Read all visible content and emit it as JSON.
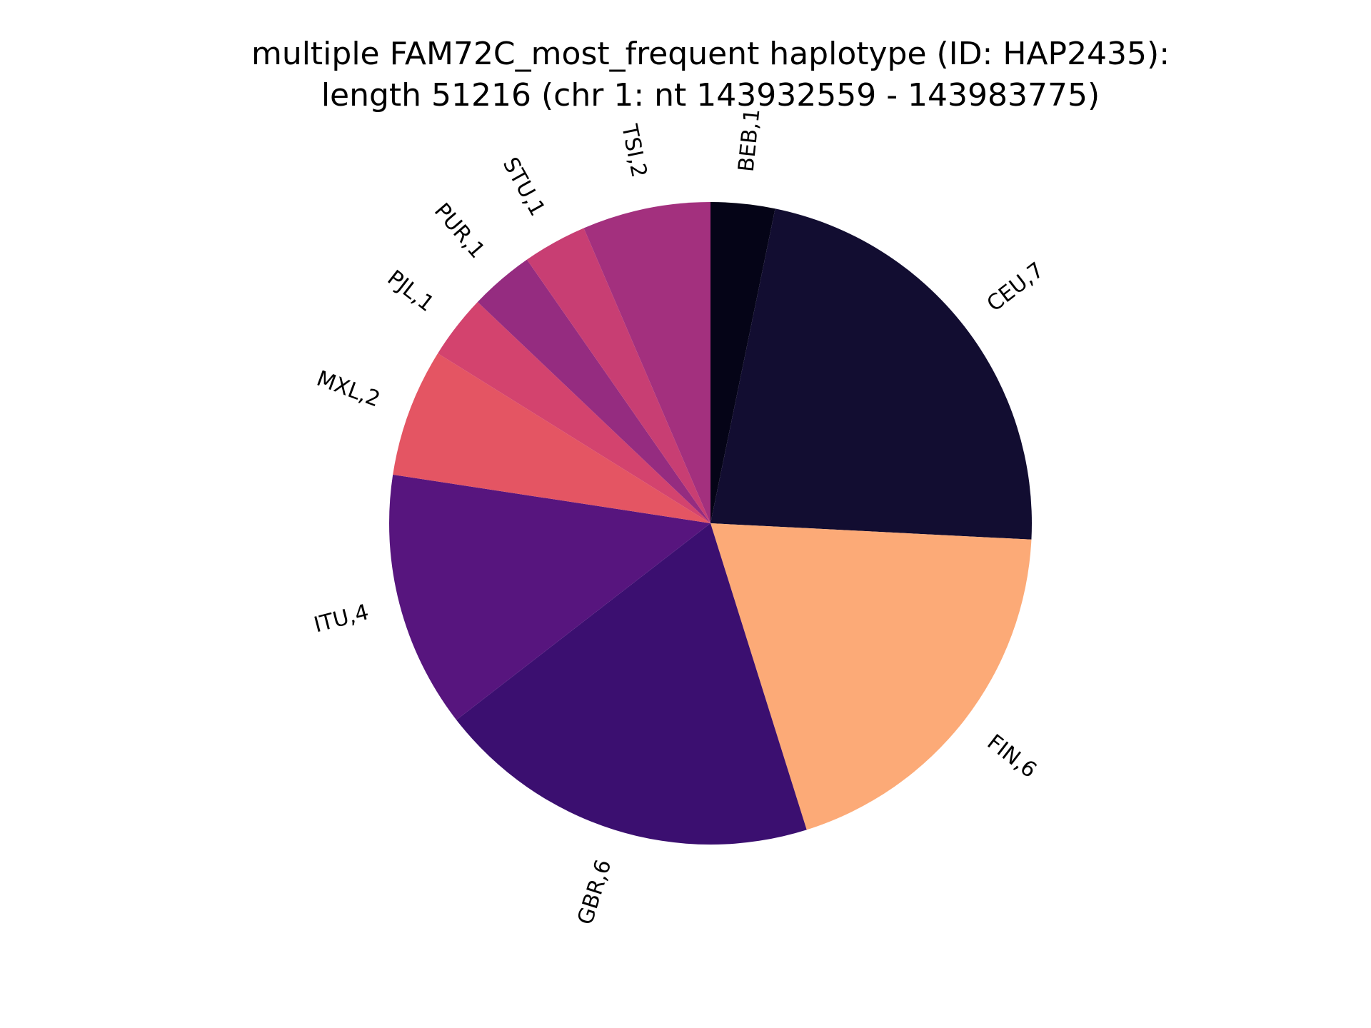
{
  "chart_data": {
    "type": "pie",
    "title_lines": [
      "multiple FAM72C_most_frequent haplotype (ID: HAP2435):",
      "length 51216 (chr 1: nt 143932559 - 143983775)"
    ],
    "start_angle_deg": 90,
    "direction": "clockwise",
    "slices": [
      {
        "label": "BEB,1",
        "category": "BEB",
        "value": 1,
        "color": "#050417"
      },
      {
        "label": "CEU,7",
        "category": "CEU",
        "value": 7,
        "color": "#120d31"
      },
      {
        "label": "FIN,6",
        "category": "FIN",
        "value": 6,
        "color": "#fcaa77"
      },
      {
        "label": "GBR,6",
        "category": "GBR",
        "value": 6,
        "color": "#3b0f70"
      },
      {
        "label": "ITU,4",
        "category": "ITU",
        "value": 4,
        "color": "#57157e"
      },
      {
        "label": "MXL,2",
        "category": "MXL",
        "value": 2,
        "color": "#e45563"
      },
      {
        "label": "PJL,1",
        "category": "PJL",
        "value": 1,
        "color": "#d3436e"
      },
      {
        "label": "PUR,1",
        "category": "PUR",
        "value": 1,
        "color": "#952c80"
      },
      {
        "label": "STU,1",
        "category": "STU",
        "value": 1,
        "color": "#c83e73"
      },
      {
        "label": "TSI,2",
        "category": "TSI",
        "value": 2,
        "color": "#a3307e"
      }
    ]
  }
}
